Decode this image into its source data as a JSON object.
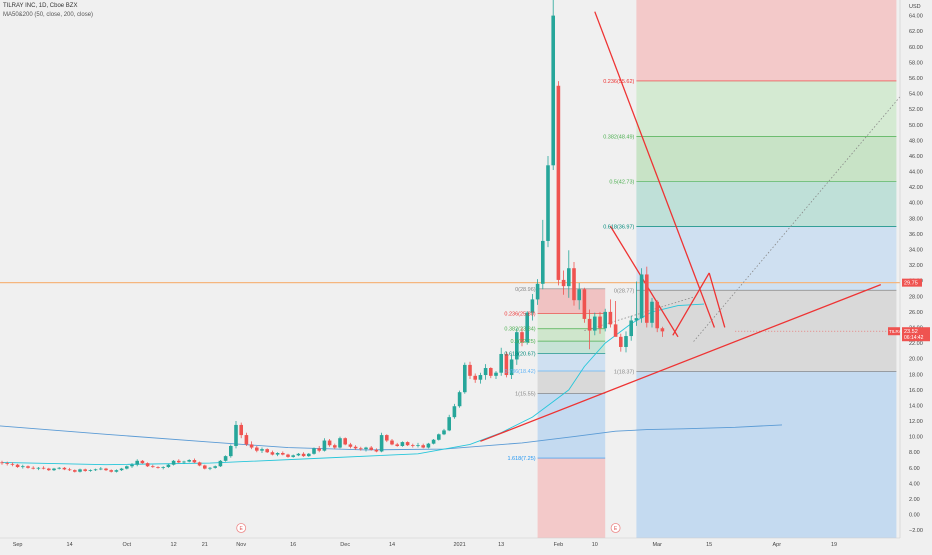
{
  "header": {
    "symbol_line": "TILRAY INC, 1D, Cboe BZX",
    "indicator_line": "MA50&200 (50, close, 200, close)"
  },
  "chart_data": {
    "type": "candlestick",
    "currency_label": "USD",
    "ylim": [
      -3,
      66
    ],
    "yticks": [
      -2,
      0,
      2,
      4,
      6,
      8,
      10,
      12,
      14,
      16,
      18,
      20,
      22,
      24,
      26,
      28,
      30,
      32,
      34,
      36,
      38,
      40,
      42,
      44,
      46,
      48,
      50,
      52,
      54,
      56,
      58,
      60,
      62,
      64
    ],
    "x_tick_labels": [
      {
        "label": "Sep",
        "i": 3
      },
      {
        "label": "14",
        "i": 13
      },
      {
        "label": "Oct",
        "i": 24
      },
      {
        "label": "12",
        "i": 33
      },
      {
        "label": "21",
        "i": 39
      },
      {
        "label": "Nov",
        "i": 46
      },
      {
        "label": "16",
        "i": 56
      },
      {
        "label": "Dec",
        "i": 66
      },
      {
        "label": "14",
        "i": 75
      },
      {
        "label": "2021",
        "i": 88
      },
      {
        "label": "13",
        "i": 96
      },
      {
        "label": "Feb",
        "i": 107
      },
      {
        "label": "10",
        "i": 114
      },
      {
        "label": "Mar",
        "i": 126
      },
      {
        "label": "15",
        "i": 136
      },
      {
        "label": "Apr",
        "i": 149
      },
      {
        "label": "19",
        "i": 160
      }
    ],
    "last_index": 141,
    "candles": [
      [
        6.7,
        6.9,
        6.4,
        6.6
      ],
      [
        6.6,
        6.8,
        6.3,
        6.5
      ],
      [
        6.5,
        6.7,
        6.2,
        6.4
      ],
      [
        6.4,
        6.5,
        6.0,
        6.1
      ],
      [
        6.1,
        6.4,
        5.9,
        6.2
      ],
      [
        6.2,
        6.3,
        5.9,
        6.0
      ],
      [
        6.0,
        6.2,
        5.8,
        5.9
      ],
      [
        5.9,
        6.1,
        5.7,
        6.0
      ],
      [
        6.0,
        6.2,
        5.8,
        5.9
      ],
      [
        5.9,
        6.0,
        5.6,
        5.7
      ],
      [
        5.7,
        6.0,
        5.6,
        5.9
      ],
      [
        5.9,
        6.1,
        5.8,
        6.0
      ],
      [
        6.0,
        6.1,
        5.7,
        5.8
      ],
      [
        5.8,
        6.0,
        5.6,
        5.7
      ],
      [
        5.7,
        5.8,
        5.4,
        5.5
      ],
      [
        5.5,
        5.9,
        5.4,
        5.8
      ],
      [
        5.8,
        5.9,
        5.5,
        5.6
      ],
      [
        5.6,
        5.8,
        5.5,
        5.7
      ],
      [
        5.7,
        5.9,
        5.6,
        5.8
      ],
      [
        5.8,
        6.1,
        5.7,
        5.9
      ],
      [
        5.9,
        6.0,
        5.6,
        5.7
      ],
      [
        5.7,
        5.8,
        5.4,
        5.5
      ],
      [
        5.5,
        5.8,
        5.4,
        5.7
      ],
      [
        5.7,
        6.0,
        5.6,
        5.9
      ],
      [
        5.9,
        6.3,
        5.8,
        6.2
      ],
      [
        6.2,
        6.6,
        6.0,
        6.4
      ],
      [
        6.4,
        7.1,
        6.2,
        6.9
      ],
      [
        6.9,
        7.0,
        6.5,
        6.6
      ],
      [
        6.6,
        6.7,
        6.1,
        6.2
      ],
      [
        6.2,
        6.4,
        6.0,
        6.1
      ],
      [
        6.1,
        6.2,
        5.9,
        6.0
      ],
      [
        6.0,
        6.2,
        5.8,
        6.1
      ],
      [
        6.1,
        6.5,
        6.0,
        6.4
      ],
      [
        6.4,
        7.0,
        6.3,
        6.9
      ],
      [
        6.9,
        7.1,
        6.6,
        6.7
      ],
      [
        6.7,
        6.9,
        6.5,
        6.8
      ],
      [
        6.8,
        7.1,
        6.7,
        7.0
      ],
      [
        7.0,
        7.2,
        6.6,
        6.7
      ],
      [
        6.7,
        6.8,
        6.2,
        6.3
      ],
      [
        6.3,
        6.4,
        5.8,
        5.9
      ],
      [
        5.9,
        6.1,
        5.7,
        6.0
      ],
      [
        6.0,
        6.3,
        5.9,
        6.2
      ],
      [
        6.2,
        7.0,
        6.1,
        6.9
      ],
      [
        6.9,
        7.6,
        6.8,
        7.5
      ],
      [
        7.5,
        9.0,
        7.3,
        8.8
      ],
      [
        8.8,
        12.0,
        8.5,
        11.5
      ],
      [
        11.5,
        11.8,
        9.8,
        10.2
      ],
      [
        10.2,
        10.5,
        8.8,
        9.0
      ],
      [
        9.0,
        9.4,
        8.4,
        8.6
      ],
      [
        8.6,
        8.8,
        8.0,
        8.2
      ],
      [
        8.2,
        8.6,
        7.9,
        8.4
      ],
      [
        8.4,
        8.5,
        7.9,
        8.0
      ],
      [
        8.0,
        8.2,
        7.6,
        7.7
      ],
      [
        7.7,
        8.0,
        7.5,
        7.9
      ],
      [
        7.9,
        8.1,
        7.6,
        7.7
      ],
      [
        7.7,
        7.8,
        7.3,
        7.4
      ],
      [
        7.4,
        7.7,
        7.3,
        7.6
      ],
      [
        7.6,
        7.9,
        7.5,
        7.8
      ],
      [
        7.8,
        8.0,
        7.4,
        7.5
      ],
      [
        7.5,
        7.9,
        7.4,
        7.8
      ],
      [
        7.8,
        8.6,
        7.7,
        8.5
      ],
      [
        8.5,
        8.8,
        8.0,
        8.2
      ],
      [
        8.2,
        9.8,
        8.1,
        9.5
      ],
      [
        9.5,
        9.7,
        8.7,
        8.9
      ],
      [
        8.9,
        9.1,
        8.4,
        8.6
      ],
      [
        8.6,
        10.0,
        8.5,
        9.8
      ],
      [
        9.8,
        9.9,
        8.9,
        9.0
      ],
      [
        9.0,
        9.2,
        8.5,
        8.7
      ],
      [
        8.7,
        8.9,
        8.3,
        8.5
      ],
      [
        8.5,
        8.7,
        8.2,
        8.4
      ],
      [
        8.4,
        8.7,
        8.1,
        8.6
      ],
      [
        8.6,
        8.8,
        8.2,
        8.3
      ],
      [
        8.3,
        8.5,
        8.0,
        8.1
      ],
      [
        8.1,
        10.5,
        8.0,
        10.2
      ],
      [
        10.2,
        10.3,
        9.3,
        9.5
      ],
      [
        9.5,
        9.7,
        8.9,
        9.0
      ],
      [
        9.0,
        9.2,
        8.7,
        8.8
      ],
      [
        8.8,
        9.4,
        8.7,
        9.3
      ],
      [
        9.3,
        9.4,
        8.8,
        8.9
      ],
      [
        8.9,
        9.1,
        8.6,
        8.8
      ],
      [
        8.8,
        9.2,
        8.6,
        8.9
      ],
      [
        8.9,
        9.1,
        8.5,
        8.6
      ],
      [
        8.6,
        9.2,
        8.5,
        9.1
      ],
      [
        9.1,
        9.7,
        9.0,
        9.6
      ],
      [
        9.6,
        10.4,
        9.5,
        10.3
      ],
      [
        10.3,
        11.0,
        10.2,
        10.8
      ],
      [
        10.8,
        12.8,
        10.7,
        12.5
      ],
      [
        12.5,
        14.2,
        12.3,
        13.9
      ],
      [
        13.9,
        15.9,
        13.7,
        15.7
      ],
      [
        15.7,
        19.5,
        15.5,
        19.2
      ],
      [
        19.2,
        19.6,
        17.4,
        17.8
      ],
      [
        17.8,
        18.1,
        16.9,
        17.3
      ],
      [
        17.3,
        18.2,
        16.8,
        17.9
      ],
      [
        17.9,
        19.3,
        17.3,
        18.8
      ],
      [
        18.8,
        18.9,
        17.5,
        17.8
      ],
      [
        17.8,
        18.4,
        17.4,
        18.2
      ],
      [
        18.2,
        21.4,
        17.8,
        20.6
      ],
      [
        20.6,
        20.9,
        17.6,
        17.9
      ],
      [
        17.9,
        20.5,
        17.4,
        19.9
      ],
      [
        19.9,
        23.9,
        19.2,
        23.4
      ],
      [
        23.4,
        24.0,
        21.6,
        22.1
      ],
      [
        22.1,
        26.1,
        21.8,
        25.9
      ],
      [
        25.9,
        28.3,
        24.9,
        27.6
      ],
      [
        27.6,
        30.2,
        26.9,
        29.6
      ],
      [
        29.6,
        37.8,
        28.9,
        35.1
      ],
      [
        35.1,
        46.0,
        34.3,
        44.8
      ],
      [
        44.8,
        67.0,
        44.2,
        64.0
      ],
      [
        55.0,
        55.6,
        29.4,
        30.1
      ],
      [
        30.1,
        31.3,
        28.2,
        29.3
      ],
      [
        29.3,
        33.9,
        27.8,
        31.6
      ],
      [
        31.6,
        32.4,
        26.8,
        27.5
      ],
      [
        27.5,
        29.7,
        26.3,
        28.9
      ],
      [
        28.9,
        29.1,
        24.6,
        25.1
      ],
      [
        25.1,
        26.3,
        21.2,
        23.6
      ],
      [
        23.6,
        25.9,
        23.0,
        25.4
      ],
      [
        25.4,
        26.0,
        23.2,
        23.9
      ],
      [
        23.9,
        26.4,
        23.5,
        26.0
      ],
      [
        26.0,
        27.6,
        24.0,
        24.4
      ],
      [
        24.4,
        27.4,
        23.1,
        22.8
      ],
      [
        22.8,
        23.2,
        20.9,
        21.5
      ],
      [
        21.5,
        23.5,
        20.8,
        22.9
      ],
      [
        22.9,
        25.5,
        22.3,
        24.9
      ],
      [
        24.9,
        29.9,
        24.2,
        25.2
      ],
      [
        25.2,
        31.6,
        24.6,
        30.8
      ],
      [
        30.8,
        31.8,
        24.0,
        24.6
      ],
      [
        24.6,
        27.8,
        24.0,
        27.3
      ],
      [
        27.3,
        27.5,
        23.4,
        23.9
      ],
      [
        23.9,
        24.1,
        22.8,
        23.5
      ]
    ],
    "ma50": [
      [
        0,
        6.7
      ],
      [
        20,
        6.4
      ],
      [
        40,
        6.6
      ],
      [
        60,
        7.2
      ],
      [
        80,
        7.8
      ],
      [
        90,
        9.0
      ],
      [
        96,
        10.5
      ],
      [
        102,
        12.5
      ],
      [
        106,
        14.5
      ],
      [
        109,
        16.0
      ],
      [
        112,
        19.0
      ],
      [
        116,
        22.0
      ],
      [
        121,
        24.5
      ],
      [
        125,
        26.0
      ],
      [
        130,
        26.8
      ],
      [
        135,
        27.0
      ]
    ],
    "ma200": [
      [
        -3,
        11.5
      ],
      [
        20,
        10.3
      ],
      [
        40,
        9.3
      ],
      [
        55,
        8.6
      ],
      [
        70,
        8.3
      ],
      [
        85,
        8.4
      ],
      [
        100,
        9.2
      ],
      [
        110,
        10.0
      ],
      [
        118,
        10.7
      ],
      [
        124,
        10.9
      ],
      [
        131,
        11.0
      ],
      [
        141,
        11.2
      ],
      [
        150,
        11.5
      ]
    ],
    "trendlines": [
      {
        "from": [
          92,
          9.4
        ],
        "to": [
          169,
          29.5
        ],
        "color": "#e33"
      },
      {
        "from": [
          114,
          64.5
        ],
        "to": [
          137,
          24.0
        ],
        "color": "#e33"
      },
      {
        "from": [
          117,
          37.0
        ],
        "to": [
          130,
          22.8
        ],
        "color": "#e33"
      },
      {
        "from": [
          129,
          23.0
        ],
        "to": [
          136,
          31.0
        ],
        "color": "#e33"
      },
      {
        "from": [
          136,
          31.0
        ],
        "to": [
          139,
          24.0
        ],
        "color": "#e33"
      }
    ],
    "dotted_lines": [
      {
        "from": [
          112,
          23.6
        ],
        "to": [
          133,
          27.9
        ],
        "color": "#888"
      },
      {
        "from": [
          133,
          22.2
        ],
        "to": [
          177,
          57.0
        ],
        "color": "#888"
      }
    ],
    "horizontal_line": {
      "value": 29.75,
      "color": "#f5b67e",
      "label": "29.75"
    },
    "fib_left": {
      "x_from": 103,
      "x_to": 116,
      "levels": [
        {
          "label": "0(28.96)",
          "value": 28.96,
          "color": "#888"
        },
        {
          "label": "0.236(25.80)",
          "value": 25.8,
          "color": "#e33"
        },
        {
          "label": "0.382(23.84)",
          "value": 23.84,
          "color": "#4caf50"
        },
        {
          "label": "0.5(22.25)",
          "value": 22.25,
          "color": "#4caf50"
        },
        {
          "label": "0.618(20.67)",
          "value": 20.67,
          "color": "#00897b"
        },
        {
          "label": "0.786(18.42)",
          "value": 18.42,
          "color": "#64b5f6"
        },
        {
          "label": "1(15.55)",
          "value": 15.55,
          "color": "#888"
        },
        {
          "label": "1.618(7.25)",
          "value": 7.25,
          "color": "#2196f3"
        }
      ]
    },
    "fib_right": {
      "x_from": 122,
      "x_to": 172,
      "levels": [
        {
          "label": "0(28.77)",
          "value": 28.77,
          "color": "#888"
        },
        {
          "label": "1(18.37)",
          "value": 18.37,
          "color": "#888"
        },
        {
          "label": "0.618(36.97)",
          "value": 36.97,
          "color": "#00897b"
        },
        {
          "label": "0.5(42.73)",
          "value": 42.73,
          "color": "#4caf50"
        },
        {
          "label": "0.382(48.49)",
          "value": 48.49,
          "color": "#4caf50"
        },
        {
          "label": "0.236(55.62)",
          "value": 55.62,
          "color": "#e33"
        }
      ]
    },
    "earnings_markers": [
      {
        "label": "E",
        "i": 46
      },
      {
        "label": "E",
        "i": 118
      }
    ],
    "price_tag": {
      "symbol": "TILRAY",
      "price": "23.52",
      "countdown": "06:14:42",
      "value": 23.52
    },
    "colors": {
      "up": "#26a69a",
      "down": "#ef5350",
      "ma50": "#26c6da",
      "ma200": "#5b9bd5",
      "background": "#f0f0f0"
    }
  }
}
